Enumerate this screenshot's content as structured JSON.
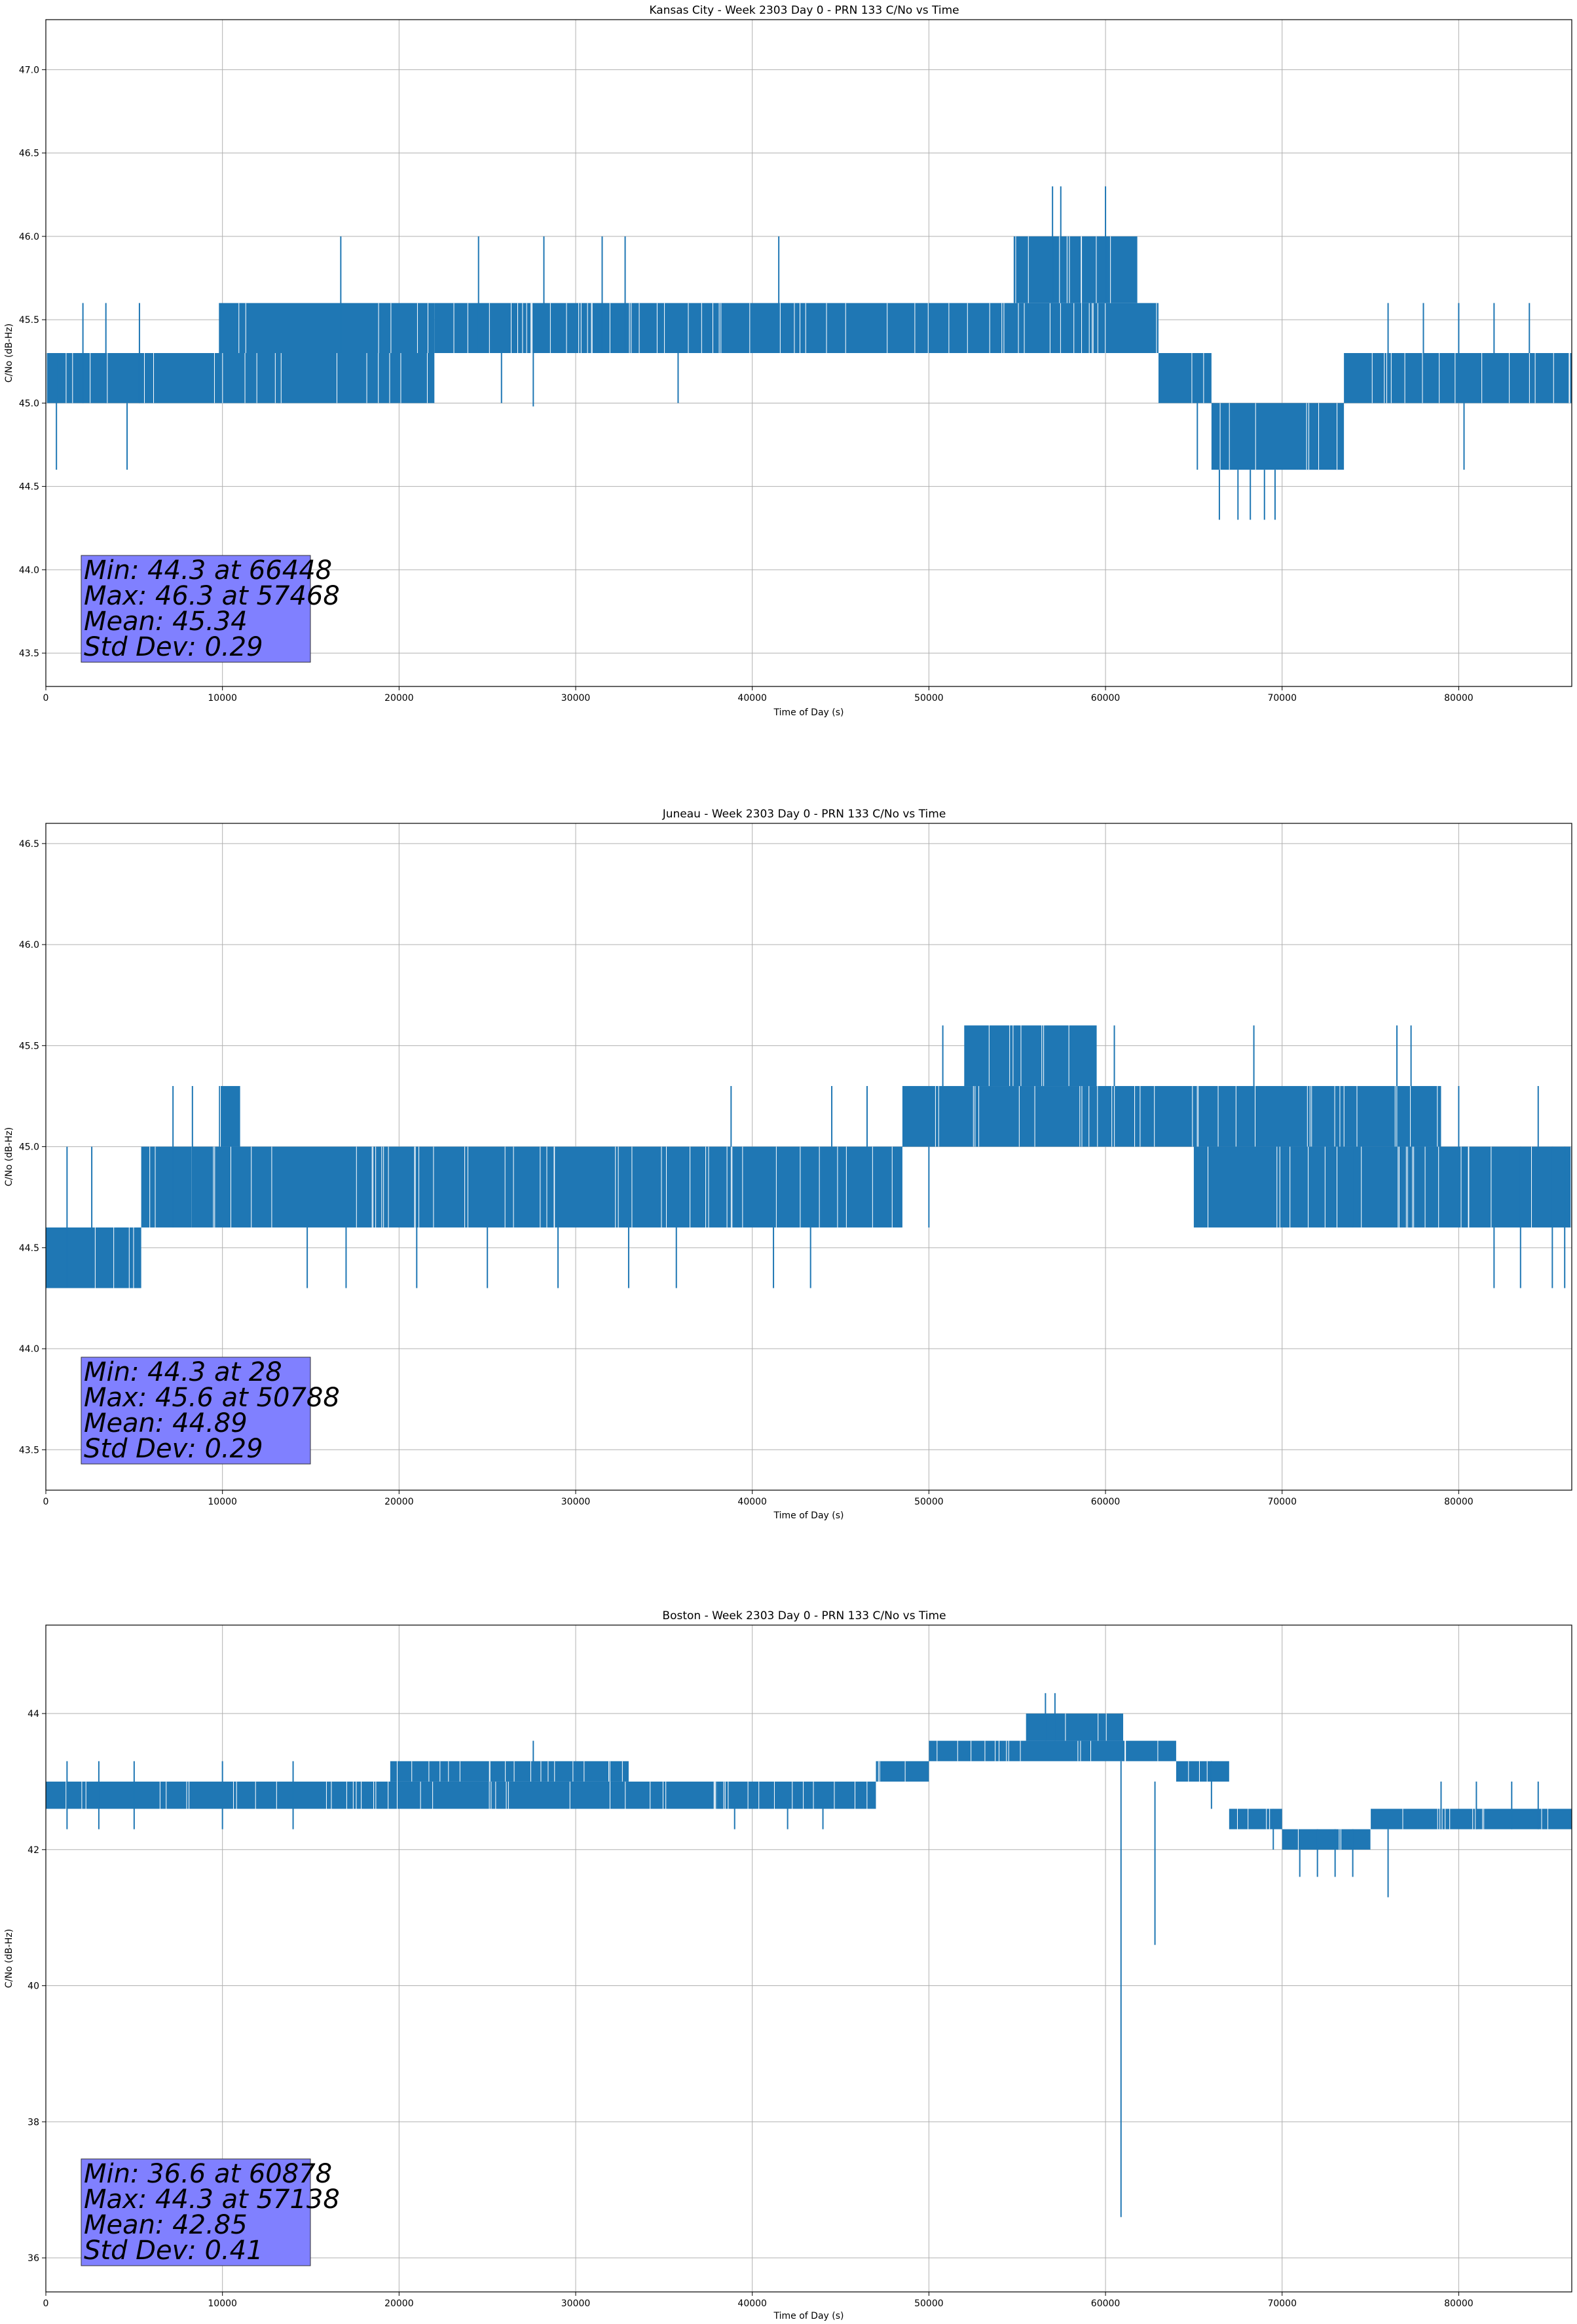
{
  "chart_data": [
    {
      "type": "line",
      "title": "Kansas City - Week 2303 Day 0 - PRN 133 C/No vs Time",
      "xlabel": "Time of Day (s)",
      "ylabel": "C/No (dB-Hz)",
      "xlim": [
        0,
        86400
      ],
      "ylim": [
        43.3,
        47.3
      ],
      "x_ticks": [
        0,
        10000,
        20000,
        30000,
        40000,
        50000,
        60000,
        70000,
        80000
      ],
      "y_ticks": [
        43.5,
        44.0,
        44.5,
        45.0,
        45.5,
        46.0,
        46.5,
        47.0
      ],
      "y_tick_labels": [
        "43.5",
        "44.0",
        "44.5",
        "45.0",
        "45.5",
        "46.0",
        "46.5",
        "47.0"
      ],
      "grid": true,
      "color": "#1f77b4",
      "segments": [
        {
          "x": [
            0,
            22000
          ],
          "low": 45.0,
          "high": 45.3
        },
        {
          "x": [
            9800,
            22000
          ],
          "low": 45.3,
          "high": 45.6
        },
        {
          "x": [
            22000,
            63000
          ],
          "low": 45.3,
          "high": 45.6
        },
        {
          "x": [
            54800,
            61800
          ],
          "low": 45.6,
          "high": 46.0
        },
        {
          "x": [
            63000,
            66000
          ],
          "low": 45.0,
          "high": 45.3
        },
        {
          "x": [
            66000,
            73500
          ],
          "low": 44.6,
          "high": 45.0
        },
        {
          "x": [
            73500,
            86400
          ],
          "low": 45.0,
          "high": 45.3
        }
      ],
      "spikes": [
        [
          600,
          44.6,
          45.3
        ],
        [
          4600,
          44.6,
          45.0
        ],
        [
          2100,
          45.0,
          45.6
        ],
        [
          3400,
          45.0,
          45.6
        ],
        [
          5300,
          45.0,
          45.6
        ],
        [
          13200,
          45.0,
          45.3
        ],
        [
          16700,
          45.3,
          46.0
        ],
        [
          24500,
          45.3,
          46.0
        ],
        [
          25800,
          45.0,
          45.3
        ],
        [
          28200,
          45.3,
          46.0
        ],
        [
          27600,
          44.98,
          45.3
        ],
        [
          31500,
          45.3,
          46.0
        ],
        [
          32800,
          45.3,
          46.0
        ],
        [
          35800,
          45.0,
          45.3
        ],
        [
          41500,
          45.3,
          46.0
        ],
        [
          57000,
          45.6,
          46.3
        ],
        [
          57468,
          45.6,
          46.3
        ],
        [
          60000,
          45.6,
          46.3
        ],
        [
          66448,
          44.3,
          44.6
        ],
        [
          67500,
          44.3,
          44.6
        ],
        [
          68200,
          44.3,
          44.6
        ],
        [
          69000,
          44.3,
          44.6
        ],
        [
          69600,
          44.3,
          44.6
        ],
        [
          80300,
          44.6,
          45.0
        ],
        [
          76000,
          45.3,
          45.6
        ],
        [
          78000,
          45.3,
          45.6
        ],
        [
          80000,
          45.3,
          45.6
        ],
        [
          82000,
          45.3,
          45.6
        ],
        [
          84000,
          45.3,
          45.6
        ],
        [
          65200,
          44.6,
          45.3
        ]
      ],
      "stats": [
        "Min: 44.3 at 66448",
        "Max: 46.3 at 57468",
        "Mean: 45.34",
        "Std Dev: 0.29"
      ]
    },
    {
      "type": "line",
      "title": "Juneau - Week 2303 Day 0 - PRN 133 C/No vs Time",
      "xlabel": "Time of Day (s)",
      "ylabel": "C/No (dB-Hz)",
      "xlim": [
        0,
        86400
      ],
      "ylim": [
        43.3,
        46.6
      ],
      "x_ticks": [
        0,
        10000,
        20000,
        30000,
        40000,
        50000,
        60000,
        70000,
        80000
      ],
      "y_ticks": [
        43.5,
        44.0,
        44.5,
        45.0,
        45.5,
        46.0,
        46.5
      ],
      "y_tick_labels": [
        "43.5",
        "44.0",
        "44.5",
        "45.0",
        "45.5",
        "46.0",
        "46.5"
      ],
      "grid": true,
      "color": "#1f77b4",
      "segments": [
        {
          "x": [
            0,
            5400
          ],
          "low": 44.3,
          "high": 44.6
        },
        {
          "x": [
            5400,
            48500
          ],
          "low": 44.6,
          "high": 45.0
        },
        {
          "x": [
            9800,
            11000
          ],
          "low": 45.0,
          "high": 45.3
        },
        {
          "x": [
            48500,
            65000
          ],
          "low": 45.0,
          "high": 45.3
        },
        {
          "x": [
            52000,
            59500
          ],
          "low": 45.3,
          "high": 45.6
        },
        {
          "x": [
            65000,
            79000
          ],
          "low": 45.0,
          "high": 45.3
        },
        {
          "x": [
            65000,
            86400
          ],
          "low": 44.6,
          "high": 45.0
        }
      ],
      "spikes": [
        [
          28,
          44.3,
          44.6
        ],
        [
          1200,
          44.3,
          45.0
        ],
        [
          2600,
          44.3,
          45.0
        ],
        [
          7200,
          44.6,
          45.3
        ],
        [
          8300,
          44.6,
          45.3
        ],
        [
          14800,
          44.3,
          44.6
        ],
        [
          17000,
          44.3,
          44.6
        ],
        [
          21000,
          44.3,
          44.6
        ],
        [
          25000,
          44.3,
          44.6
        ],
        [
          29000,
          44.3,
          44.6
        ],
        [
          33000,
          44.3,
          44.6
        ],
        [
          35700,
          44.3,
          44.6
        ],
        [
          38800,
          45.0,
          45.3
        ],
        [
          41200,
          44.3,
          44.6
        ],
        [
          43300,
          44.3,
          44.6
        ],
        [
          44500,
          45.0,
          45.3
        ],
        [
          46500,
          45.0,
          45.3
        ],
        [
          50000,
          44.6,
          45.0
        ],
        [
          50788,
          45.3,
          45.6
        ],
        [
          60500,
          45.3,
          45.6
        ],
        [
          68400,
          45.3,
          45.6
        ],
        [
          76500,
          45.3,
          45.6
        ],
        [
          77300,
          45.3,
          45.6
        ],
        [
          80000,
          45.0,
          45.3
        ],
        [
          82000,
          44.3,
          44.6
        ],
        [
          83500,
          44.3,
          45.0
        ],
        [
          84500,
          45.0,
          45.3
        ],
        [
          85300,
          44.3,
          45.0
        ],
        [
          86000,
          44.3,
          45.0
        ],
        [
          74000,
          44.6,
          45.0
        ]
      ],
      "stats": [
        "Min: 44.3 at 28",
        "Max: 45.6 at 50788",
        "Mean: 44.89",
        "Std Dev: 0.29"
      ]
    },
    {
      "type": "line",
      "title": "Boston - Week 2303 Day 0 - PRN 133 C/No vs Time",
      "xlabel": "Time of Day (s)",
      "ylabel": "C/No (dB-Hz)",
      "xlim": [
        0,
        86400
      ],
      "ylim": [
        35.5,
        45.3
      ],
      "x_ticks": [
        0,
        10000,
        20000,
        30000,
        40000,
        50000,
        60000,
        70000,
        80000
      ],
      "y_ticks": [
        36,
        38,
        40,
        42,
        44
      ],
      "y_tick_labels": [
        "36",
        "38",
        "40",
        "42",
        "44"
      ],
      "grid": true,
      "color": "#1f77b4",
      "segments": [
        {
          "x": [
            0,
            38000
          ],
          "low": 42.6,
          "high": 43.0
        },
        {
          "x": [
            19500,
            33000
          ],
          "low": 43.0,
          "high": 43.3
        },
        {
          "x": [
            38000,
            47000
          ],
          "low": 42.6,
          "high": 43.0
        },
        {
          "x": [
            47000,
            50000
          ],
          "low": 43.0,
          "high": 43.3
        },
        {
          "x": [
            50000,
            64000
          ],
          "low": 43.3,
          "high": 43.6
        },
        {
          "x": [
            55500,
            61000
          ],
          "low": 43.6,
          "high": 44.0
        },
        {
          "x": [
            64000,
            67000
          ],
          "low": 43.0,
          "high": 43.3
        },
        {
          "x": [
            67000,
            70000
          ],
          "low": 42.3,
          "high": 42.6
        },
        {
          "x": [
            70000,
            75000
          ],
          "low": 42.0,
          "high": 42.3
        },
        {
          "x": [
            75000,
            86400
          ],
          "low": 42.3,
          "high": 42.6
        }
      ],
      "spikes": [
        [
          60878,
          36.6,
          43.3
        ],
        [
          62800,
          40.6,
          43.0
        ],
        [
          57138,
          43.6,
          44.3
        ],
        [
          56600,
          43.6,
          44.3
        ],
        [
          27600,
          43.0,
          43.6
        ],
        [
          1200,
          42.3,
          43.3
        ],
        [
          3000,
          42.3,
          43.3
        ],
        [
          5000,
          42.3,
          43.3
        ],
        [
          10000,
          42.3,
          43.3
        ],
        [
          14000,
          42.3,
          43.3
        ],
        [
          39000,
          42.3,
          42.6
        ],
        [
          42000,
          42.3,
          42.6
        ],
        [
          44000,
          42.3,
          42.6
        ],
        [
          72000,
          41.6,
          42.3
        ],
        [
          73000,
          41.6,
          42.3
        ],
        [
          74000,
          41.6,
          42.3
        ],
        [
          76000,
          41.3,
          42.3
        ],
        [
          71000,
          41.6,
          42.0
        ],
        [
          79000,
          42.3,
          43.0
        ],
        [
          81000,
          42.3,
          43.0
        ],
        [
          83000,
          42.3,
          43.0
        ],
        [
          84500,
          42.3,
          43.0
        ],
        [
          69500,
          42.0,
          42.6
        ],
        [
          66000,
          42.6,
          43.3
        ]
      ],
      "stats": [
        "Min: 36.6 at 60878",
        "Max: 44.3 at 57138",
        "Mean: 42.85",
        "Std Dev: 0.41"
      ]
    }
  ]
}
